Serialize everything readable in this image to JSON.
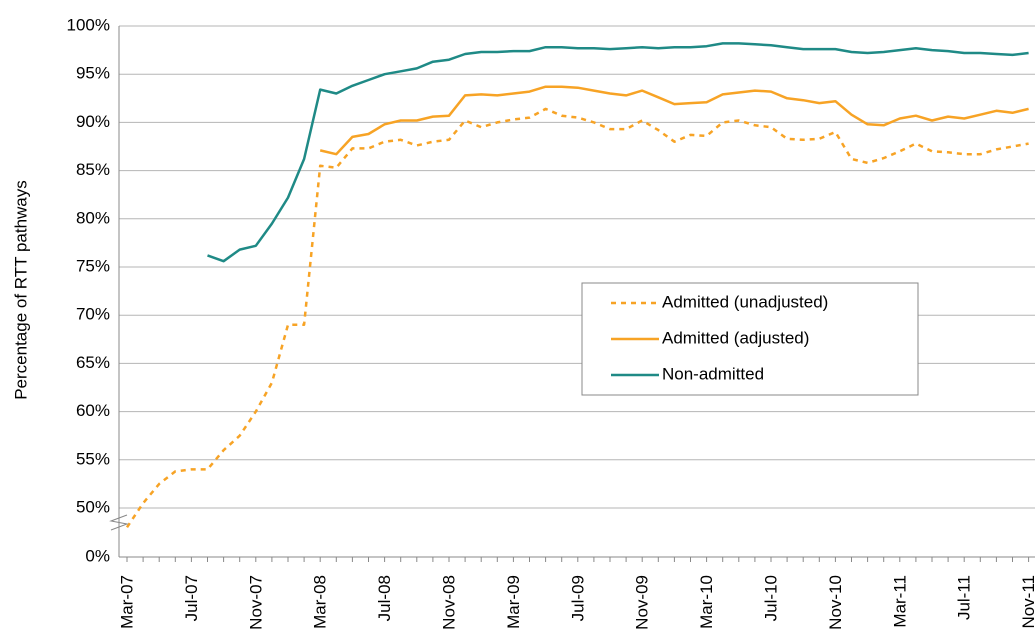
{
  "chart_data": {
    "type": "line",
    "y_label": "Percentage of RTT pathways",
    "categories": [
      "Mar-07",
      null,
      null,
      null,
      "Jul-07",
      null,
      null,
      null,
      "Nov-07",
      null,
      null,
      null,
      "Mar-08",
      null,
      null,
      null,
      "Jul-08",
      null,
      null,
      null,
      "Nov-08",
      null,
      null,
      null,
      "Mar-09",
      null,
      null,
      null,
      "Jul-09",
      null,
      null,
      null,
      "Nov-09",
      null,
      null,
      null,
      "Mar-10",
      null,
      null,
      null,
      "Jul-10",
      null,
      null,
      null,
      "Nov-10",
      null,
      null,
      null,
      "Mar-11",
      null,
      null,
      null,
      "Jul-11",
      null,
      null,
      null,
      "Nov-11"
    ],
    "series": [
      {
        "name": "Admitted (unadjusted)",
        "color": "#f7a325",
        "dash": true,
        "values": [
          48,
          50.5,
          52.5,
          53.8,
          54,
          54,
          56,
          57.5,
          60,
          63,
          69,
          69,
          85.5,
          85.3,
          87.3,
          87.3,
          88,
          88.2,
          87.6,
          88,
          88.2,
          90.2,
          89.5,
          90,
          90.3,
          90.5,
          91.4,
          90.7,
          90.5,
          90,
          89.3,
          89.3,
          90.2,
          89.2,
          88,
          88.7,
          88.6,
          90,
          90.2,
          89.7,
          89.5,
          88.3,
          88.2,
          88.3,
          89,
          86.2,
          85.8,
          86.3,
          87,
          87.8,
          87,
          86.9,
          86.7,
          86.7,
          87.2,
          87.5,
          87.8
        ]
      },
      {
        "name": "Admitted (adjusted)",
        "color": "#f7a325",
        "dash": false,
        "values": [
          null,
          null,
          null,
          null,
          null,
          null,
          null,
          null,
          null,
          null,
          null,
          null,
          87.1,
          86.7,
          88.5,
          88.8,
          89.8,
          90.2,
          90.2,
          90.6,
          90.7,
          92.8,
          92.9,
          92.8,
          93,
          93.2,
          93.7,
          93.7,
          93.6,
          93.3,
          93,
          92.8,
          93.3,
          92.6,
          91.9,
          92,
          92.1,
          92.9,
          93.1,
          93.3,
          93.2,
          92.5,
          92.3,
          92,
          92.2,
          90.8,
          89.8,
          89.7,
          90.4,
          90.7,
          90.2,
          90.6,
          90.4,
          90.8,
          91.2,
          91,
          91.4
        ]
      },
      {
        "name": "Non-admitted",
        "color": "#1f8a86",
        "dash": false,
        "values": [
          null,
          null,
          null,
          null,
          null,
          76.2,
          75.6,
          76.8,
          77.2,
          79.5,
          82.2,
          86.2,
          93.4,
          93,
          93.8,
          94.4,
          95,
          95.3,
          95.6,
          96.3,
          96.5,
          97.1,
          97.3,
          97.3,
          97.4,
          97.4,
          97.8,
          97.8,
          97.7,
          97.7,
          97.6,
          97.7,
          97.8,
          97.7,
          97.8,
          97.8,
          97.9,
          98.2,
          98.2,
          98.1,
          98,
          97.8,
          97.6,
          97.6,
          97.6,
          97.3,
          97.2,
          97.3,
          97.5,
          97.7,
          97.5,
          97.4,
          97.2,
          97.2,
          97.1,
          97,
          97.2
        ]
      }
    ],
    "ylim": [
      0,
      100
    ],
    "y_break": [
      0,
      50
    ],
    "yticks": [
      {
        "value": 0,
        "label": "0%"
      },
      {
        "value": 50,
        "label": "50%"
      },
      {
        "value": 55,
        "label": "55%"
      },
      {
        "value": 60,
        "label": "60%"
      },
      {
        "value": 65,
        "label": "65%"
      },
      {
        "value": 70,
        "label": "70%"
      },
      {
        "value": 75,
        "label": "75%"
      },
      {
        "value": 80,
        "label": "80%"
      },
      {
        "value": 85,
        "label": "85%"
      },
      {
        "value": 90,
        "label": "90%"
      },
      {
        "value": 95,
        "label": "95%"
      },
      {
        "value": 100,
        "label": "100%"
      }
    ],
    "grid": true
  }
}
